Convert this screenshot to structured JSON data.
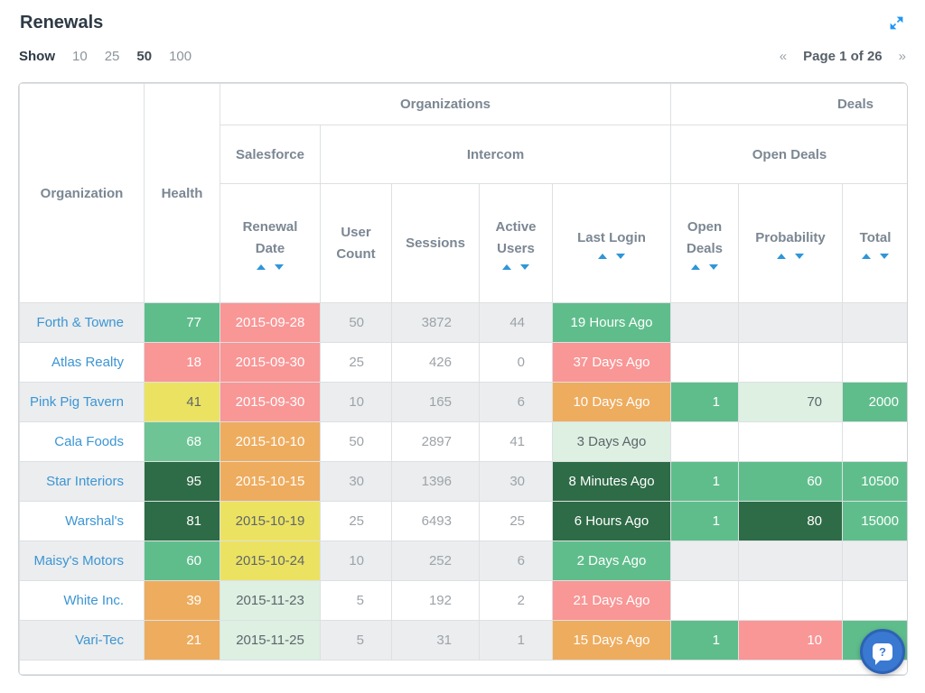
{
  "page": {
    "title": "Renewals",
    "show_label": "Show",
    "page_size_options": [
      "10",
      "25",
      "50",
      "100"
    ],
    "page_size_selected": "50",
    "pagination": {
      "prev": "«",
      "label": "Page 1 of 26",
      "next": "»"
    }
  },
  "colors": {
    "green": {
      "bg": "#5fbd8c",
      "text": "#ffffff"
    },
    "green2": {
      "bg": "#6ec494",
      "text": "#ffffff"
    },
    "dark": {
      "bg": "#2e6b47",
      "text": "#ffffff"
    },
    "pale": {
      "bg": "#ddf0e2",
      "text": "#5d666c"
    },
    "yellow": {
      "bg": "#ece261",
      "text": "#5d666c"
    },
    "orange": {
      "bg": "#eeac5e",
      "text": "#ffffff"
    },
    "salmon": {
      "bg": "#f99696",
      "text": "#ffffff"
    },
    "accent_blue": "#2f96d8",
    "link_blue": "#3b95d4",
    "help_button_blue": "#3a79d2"
  },
  "table": {
    "header": {
      "group_organizations": "Organizations",
      "group_deals": "Deals",
      "sub_salesforce": "Salesforce",
      "sub_intercom": "Intercom",
      "sub_open_deals": "Open Deals",
      "organization": "Organization",
      "health": "Health",
      "renewal_date": "Renewal Date",
      "user_count": "User Count",
      "sessions": "Sessions",
      "active_users": "Active Users",
      "last_login": "Last Login",
      "open_deals": "Open Deals",
      "probability": "Probability",
      "total": "Total"
    },
    "column_keys": [
      "organization",
      "health",
      "renewal_date",
      "user_count",
      "sessions",
      "active_users",
      "last_login",
      "open_deals",
      "probability",
      "total"
    ],
    "rows": [
      {
        "organization": "Forth & Towne",
        "health": {
          "v": "77",
          "c": "green"
        },
        "renewal_date": {
          "v": "2015-09-28",
          "c": "salmon"
        },
        "user_count": "50",
        "sessions": "3872",
        "active_users": "44",
        "last_login": {
          "v": "19 Hours Ago",
          "c": "green"
        },
        "open_deals": null,
        "probability": null,
        "total": null
      },
      {
        "organization": "Atlas Realty",
        "health": {
          "v": "18",
          "c": "salmon"
        },
        "renewal_date": {
          "v": "2015-09-30",
          "c": "salmon"
        },
        "user_count": "25",
        "sessions": "426",
        "active_users": "0",
        "last_login": {
          "v": "37 Days Ago",
          "c": "salmon"
        },
        "open_deals": null,
        "probability": null,
        "total": null
      },
      {
        "organization": "Pink Pig Tavern",
        "health": {
          "v": "41",
          "c": "yellow"
        },
        "renewal_date": {
          "v": "2015-09-30",
          "c": "salmon"
        },
        "user_count": "10",
        "sessions": "165",
        "active_users": "6",
        "last_login": {
          "v": "10 Days Ago",
          "c": "orange"
        },
        "open_deals": {
          "v": "1",
          "c": "green"
        },
        "probability": {
          "v": "70",
          "c": "pale"
        },
        "total": {
          "v": "2000",
          "c": "green"
        }
      },
      {
        "organization": "Cala Foods",
        "health": {
          "v": "68",
          "c": "green2"
        },
        "renewal_date": {
          "v": "2015-10-10",
          "c": "orange"
        },
        "user_count": "50",
        "sessions": "2897",
        "active_users": "41",
        "last_login": {
          "v": "3 Days Ago",
          "c": "pale"
        },
        "open_deals": null,
        "probability": null,
        "total": null
      },
      {
        "organization": "Star Interiors",
        "health": {
          "v": "95",
          "c": "dark"
        },
        "renewal_date": {
          "v": "2015-10-15",
          "c": "orange"
        },
        "user_count": "30",
        "sessions": "1396",
        "active_users": "30",
        "last_login": {
          "v": "8 Minutes Ago",
          "c": "dark"
        },
        "open_deals": {
          "v": "1",
          "c": "green"
        },
        "probability": {
          "v": "60",
          "c": "green"
        },
        "total": {
          "v": "10500",
          "c": "green"
        }
      },
      {
        "organization": "Warshal's",
        "health": {
          "v": "81",
          "c": "dark"
        },
        "renewal_date": {
          "v": "2015-10-19",
          "c": "yellow"
        },
        "user_count": "25",
        "sessions": "6493",
        "active_users": "25",
        "last_login": {
          "v": "6 Hours Ago",
          "c": "dark"
        },
        "open_deals": {
          "v": "1",
          "c": "green"
        },
        "probability": {
          "v": "80",
          "c": "dark"
        },
        "total": {
          "v": "15000",
          "c": "green"
        }
      },
      {
        "organization": "Maisy's Motors",
        "health": {
          "v": "60",
          "c": "green"
        },
        "renewal_date": {
          "v": "2015-10-24",
          "c": "yellow"
        },
        "user_count": "10",
        "sessions": "252",
        "active_users": "6",
        "last_login": {
          "v": "2 Days Ago",
          "c": "green"
        },
        "open_deals": null,
        "probability": null,
        "total": null
      },
      {
        "organization": "White Inc.",
        "health": {
          "v": "39",
          "c": "orange"
        },
        "renewal_date": {
          "v": "2015-11-23",
          "c": "pale"
        },
        "user_count": "5",
        "sessions": "192",
        "active_users": "2",
        "last_login": {
          "v": "21 Days Ago",
          "c": "salmon"
        },
        "open_deals": null,
        "probability": null,
        "total": null
      },
      {
        "organization": "Vari-Tec",
        "health": {
          "v": "21",
          "c": "orange"
        },
        "renewal_date": {
          "v": "2015-11-25",
          "c": "pale"
        },
        "user_count": "5",
        "sessions": "31",
        "active_users": "1",
        "last_login": {
          "v": "15 Days Ago",
          "c": "orange"
        },
        "open_deals": {
          "v": "1",
          "c": "green"
        },
        "probability": {
          "v": "10",
          "c": "salmon"
        },
        "total": {
          "v": "",
          "c": "green"
        }
      }
    ]
  },
  "help_button": {
    "icon": "help-question-icon",
    "glyph": "?"
  }
}
